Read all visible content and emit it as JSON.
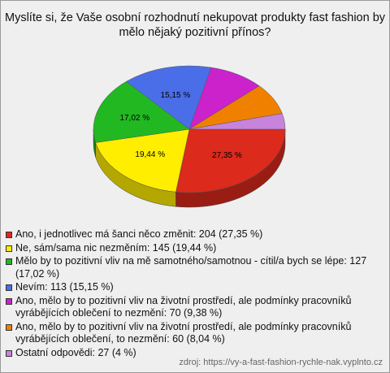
{
  "chart_data": {
    "type": "pie",
    "title": "Myslíte si, že Vaše osobní rozhodnutí nekupovat produkty fast fashion by mělo nějaký pozitivní přínos?",
    "categories": [
      "Ano, i jednotlivec má šanci něco změnit: 204 (27,35 %)",
      "Ne, sám/sama nic nezměním: 145 (19,44 %)",
      "Mělo by to pozitivní vliv na mě samotného/samotnou - cítil/a bych se lépe: 127 (17,02 %)",
      "Nevím: 113 (15,15 %)",
      "Ano, mělo by to pozitivní vliv na životní prostředí, ale podmínky pracovníků vyrábějících oblečení to nezmění: 70 (9,38 %)",
      "Ano, mělo by to pozitivní vliv na životní prostředí, ale podmínky pracovníků vyrábějících oblečení, to nezmění: 60 (8,04 %)",
      "Ostatní odpovědi: 27 (4 %)"
    ],
    "values": [
      27.35,
      19.44,
      17.02,
      15.15,
      9.38,
      8.04,
      4
    ],
    "value_labels": [
      "27,35 %",
      "19,44 %",
      "17,02 %",
      "15,15 %",
      null,
      null,
      null
    ],
    "colors": [
      "#dc2a1c",
      "#ffee00",
      "#22b822",
      "#4a6ee8",
      "#cc22cc",
      "#f08000",
      "#c883dc"
    ],
    "source": "zdroj: https://vy-a-fast-fashion-rychle-nak.vyplnto.cz"
  }
}
